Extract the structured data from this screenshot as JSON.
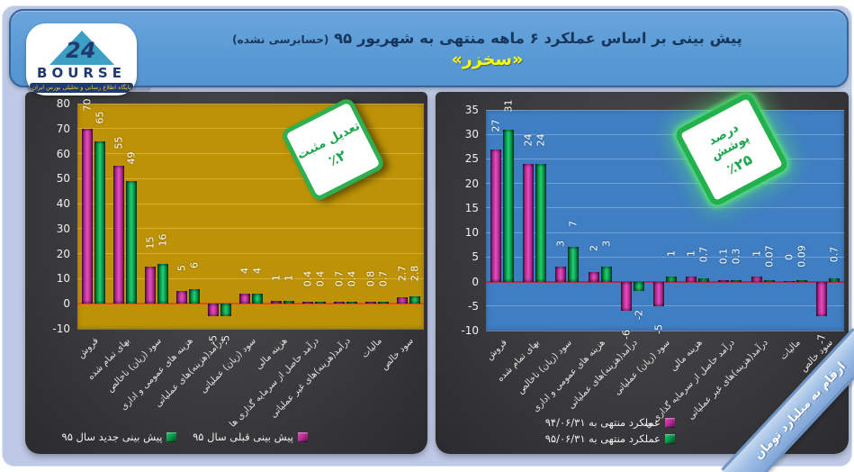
{
  "header": {
    "title_main": "پیش بینی بر اساس عملکرد ۶ ماهه منتهی به شهریور ۹۵",
    "title_note": "(حسابرسی نشده)",
    "subtitle": "«سخزر»",
    "logo": {
      "brand": "BOURSE",
      "number": "24",
      "tagline": "پایگاه اطلاع رسانی و تحلیلی بورس ایران"
    },
    "colors": {
      "bar": "#5b9bd5",
      "title": "#17365d",
      "subtitle": "#ffff00"
    }
  },
  "ribbon": {
    "text": "ارقام به میلیارد تومان"
  },
  "chart_data": [
    {
      "type": "bar",
      "badge": {
        "line1": "تعدیل مثبت",
        "line2": "٪۲"
      },
      "categories": [
        "فروش",
        "بهای تمام شده",
        "سود (زیان) ناخالص",
        "هزینه های عمومی و اداری",
        "درآمد(هزینه)های عملیاتی",
        "سود (زیان) عملیاتی",
        "هزینه مالی",
        "درآمد حاصل از سرمایه گذاری ها",
        "درآمد(هزینه)های غیر عملیاتی",
        "مالیات",
        "سود خالص"
      ],
      "series": [
        {
          "name": "پیش بینی قبلی سال ۹۵",
          "color": "#b52a93",
          "color_light": "#e14fbe",
          "color_dark": "#4a0f3e",
          "values": [
            70,
            55,
            15,
            5,
            -5,
            4,
            1,
            0.4,
            0.7,
            0.8,
            2.7
          ]
        },
        {
          "name": "پیش بینی جدید سال ۹۵",
          "color": "#009448",
          "color_light": "#27ce74",
          "color_dark": "#083b1d",
          "values": [
            65,
            49,
            16,
            6,
            -5,
            4,
            1,
            0.4,
            0.4,
            0.7,
            2.8
          ]
        }
      ],
      "ylim": [
        -10,
        80
      ],
      "ytick_step": 10,
      "grid": true,
      "legend_position": "bottom",
      "plot_bg": "#bd9206",
      "grid_color": "rgba(255,228,140,0.35)",
      "zero_line": "#e8481c"
    },
    {
      "type": "bar",
      "badge": {
        "line1": "درصد پوشش",
        "line2": "٪۲۵"
      },
      "categories": [
        "فروش",
        "بهای تمام شده",
        "سود (زیان) ناخالص",
        "هزینه های عمومی و اداری",
        "درآمد(هزینه)های عملیاتی",
        "سود (زیان) عملیاتی",
        "هزینه مالی",
        "درآمد حاصل از سرمایه گذاری ها",
        "درآمد(هزینه)های غیر عملیاتی",
        "مالیات",
        "سود خالص"
      ],
      "series": [
        {
          "name": "عملکرد منتهی به ۹۴/۰۶/۳۱",
          "color": "#b52a93",
          "color_light": "#e14fbe",
          "color_dark": "#4a0f3e",
          "values": [
            27,
            24,
            3,
            2,
            -6,
            -5,
            1,
            0.1,
            1,
            0,
            -7
          ]
        },
        {
          "name": "عملکرد منتهی به ۹۵/۰۶/۳۱",
          "color": "#009448",
          "color_light": "#27ce74",
          "color_dark": "#083b1d",
          "values": [
            31,
            24,
            7,
            3,
            -2,
            1,
            0.7,
            0.3,
            0.07,
            0.09,
            0.7
          ]
        }
      ],
      "ylim": [
        -10,
        35
      ],
      "ytick_step": 5,
      "grid": true,
      "legend_position": "bottom",
      "plot_bg": "#3f7ec2",
      "grid_color": "rgba(175,205,240,0.45)",
      "zero_line": "#b22749"
    }
  ]
}
